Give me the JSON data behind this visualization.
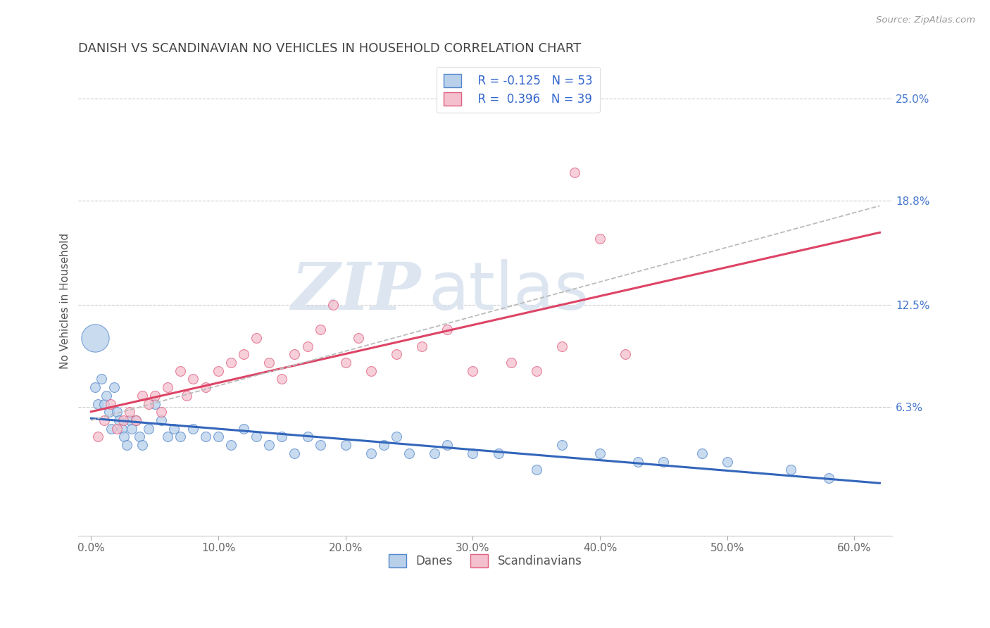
{
  "title": "DANISH VS SCANDINAVIAN NO VEHICLES IN HOUSEHOLD CORRELATION CHART",
  "source": "Source: ZipAtlas.com",
  "xlabel_ticks": [
    "0.0%",
    "10.0%",
    "20.0%",
    "30.0%",
    "40.0%",
    "50.0%",
    "60.0%"
  ],
  "xlabel_vals": [
    0.0,
    10.0,
    20.0,
    30.0,
    40.0,
    50.0,
    60.0
  ],
  "ylabel": "No Vehicles in Household",
  "ylabel_right_vals": [
    6.3,
    12.5,
    18.8,
    25.0
  ],
  "ylim": [
    -1.5,
    27.0
  ],
  "xlim": [
    -1.0,
    63.0
  ],
  "legend_r1": "R = -0.125",
  "legend_n1": "N = 53",
  "legend_r2": "R =  0.396",
  "legend_n2": "N = 39",
  "color_danes_fill": "#b8d0ea",
  "color_danes_edge": "#5588cc",
  "color_scand_fill": "#f4c0ce",
  "color_scand_edge": "#e06080",
  "color_line_danes": "#3366bb",
  "color_line_scand": "#dd4466",
  "color_line_overall": "#bbbbbb",
  "background_color": "#ffffff",
  "grid_color": "#cccccc",
  "danes_x": [
    0.3,
    0.5,
    0.8,
    1.0,
    1.2,
    1.4,
    1.6,
    1.8,
    2.0,
    2.2,
    2.4,
    2.6,
    2.8,
    3.0,
    3.2,
    3.5,
    3.8,
    4.0,
    4.5,
    5.0,
    5.5,
    6.0,
    6.5,
    7.0,
    8.0,
    9.0,
    10.0,
    11.0,
    12.0,
    13.0,
    14.0,
    15.0,
    16.0,
    17.0,
    18.0,
    20.0,
    22.0,
    23.0,
    24.0,
    25.0,
    27.0,
    28.0,
    30.0,
    32.0,
    35.0,
    37.0,
    40.0,
    43.0,
    45.0,
    48.0,
    50.0,
    55.0,
    58.0
  ],
  "danes_y": [
    7.5,
    6.5,
    8.0,
    6.5,
    7.0,
    6.0,
    5.0,
    7.5,
    6.0,
    5.5,
    5.0,
    4.5,
    4.0,
    5.5,
    5.0,
    5.5,
    4.5,
    4.0,
    5.0,
    6.5,
    5.5,
    4.5,
    5.0,
    4.5,
    5.0,
    4.5,
    4.5,
    4.0,
    5.0,
    4.5,
    4.0,
    4.5,
    3.5,
    4.5,
    4.0,
    4.0,
    3.5,
    4.0,
    4.5,
    3.5,
    3.5,
    4.0,
    3.5,
    3.5,
    2.5,
    4.0,
    3.5,
    3.0,
    3.0,
    3.5,
    3.0,
    2.5,
    2.0
  ],
  "scand_x": [
    0.5,
    1.0,
    1.5,
    2.0,
    2.5,
    3.0,
    3.5,
    4.0,
    4.5,
    5.0,
    5.5,
    6.0,
    7.0,
    7.5,
    8.0,
    9.0,
    10.0,
    11.0,
    12.0,
    13.0,
    14.0,
    15.0,
    16.0,
    17.0,
    18.0,
    19.0,
    20.0,
    21.0,
    22.0,
    24.0,
    26.0,
    28.0,
    30.0,
    33.0,
    35.0,
    37.0,
    38.0,
    40.0,
    42.0
  ],
  "scand_y": [
    4.5,
    5.5,
    6.5,
    5.0,
    5.5,
    6.0,
    5.5,
    7.0,
    6.5,
    7.0,
    6.0,
    7.5,
    8.5,
    7.0,
    8.0,
    7.5,
    8.5,
    9.0,
    9.5,
    10.5,
    9.0,
    8.0,
    9.5,
    10.0,
    11.0,
    12.5,
    9.0,
    10.5,
    8.5,
    9.5,
    10.0,
    11.0,
    8.5,
    9.0,
    8.5,
    10.0,
    20.5,
    16.5,
    9.5
  ],
  "danes_large_x": 0.3,
  "danes_large_y": 10.5,
  "danes_large_size": 800,
  "danes_marker_size": 100,
  "scand_marker_size": 100,
  "watermark_zip": "ZIP",
  "watermark_atlas": "atlas",
  "watermark_color": "#dde6f0",
  "watermark_fontsize_zip": 68,
  "watermark_fontsize_atlas": 68
}
